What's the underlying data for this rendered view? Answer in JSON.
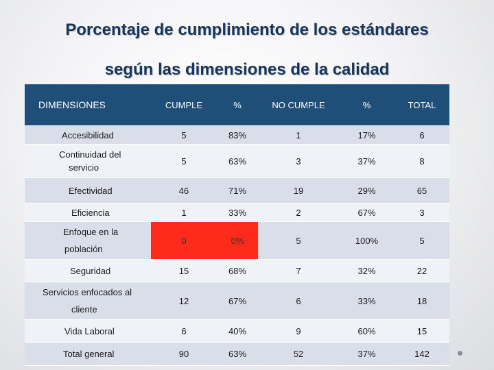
{
  "title_line1": "Porcentaje de cumplimiento de los estándares",
  "title_line2": "según las dimensiones de la calidad",
  "headers": [
    "DIMENSIONES",
    "CUMPLE",
    "%",
    "NO CUMPLE",
    "%",
    "TOTAL"
  ],
  "rows": [
    {
      "name": "Accesibilidad",
      "cumple": "5",
      "pct_cumple": "83%",
      "no_cumple": "1",
      "pct_no": "17%",
      "total": "6"
    },
    {
      "name_a": "Continuidad del",
      "name_b": "servicio",
      "cumple": "5",
      "pct_cumple": "63%",
      "no_cumple": "3",
      "pct_no": "37%",
      "total": "8"
    },
    {
      "name": "Efectividad",
      "cumple": "46",
      "pct_cumple": "71%",
      "no_cumple": "19",
      "pct_no": "29%",
      "total": "65"
    },
    {
      "name": "Eficiencia",
      "cumple": "1",
      "pct_cumple": "33%",
      "no_cumple": "2",
      "pct_no": "67%",
      "total": "3"
    },
    {
      "name_a": "Enfoque en la",
      "name_b": "población",
      "cumple": "0",
      "pct_cumple": "0%",
      "no_cumple": "5",
      "pct_no": "100%",
      "total": "5"
    },
    {
      "name": "Seguridad",
      "cumple": "15",
      "pct_cumple": "68%",
      "no_cumple": "7",
      "pct_no": "32%",
      "total": "22"
    },
    {
      "name_a": "Servicios enfocados al",
      "name_b": "cliente",
      "cumple": "12",
      "pct_cumple": "67%",
      "no_cumple": "6",
      "pct_no": "33%",
      "total": "18"
    },
    {
      "name": "Vida Laboral",
      "cumple": "6",
      "pct_cumple": "40%",
      "no_cumple": "9",
      "pct_no": "60%",
      "total": "15"
    },
    {
      "name": "Total general",
      "cumple": "90",
      "pct_cumple": "63%",
      "no_cumple": "52",
      "pct_no": "37%",
      "total": "142"
    }
  ],
  "colors": {
    "header": "#1f4e79",
    "title": "#17365d",
    "highlight": "#ff2a1a"
  }
}
